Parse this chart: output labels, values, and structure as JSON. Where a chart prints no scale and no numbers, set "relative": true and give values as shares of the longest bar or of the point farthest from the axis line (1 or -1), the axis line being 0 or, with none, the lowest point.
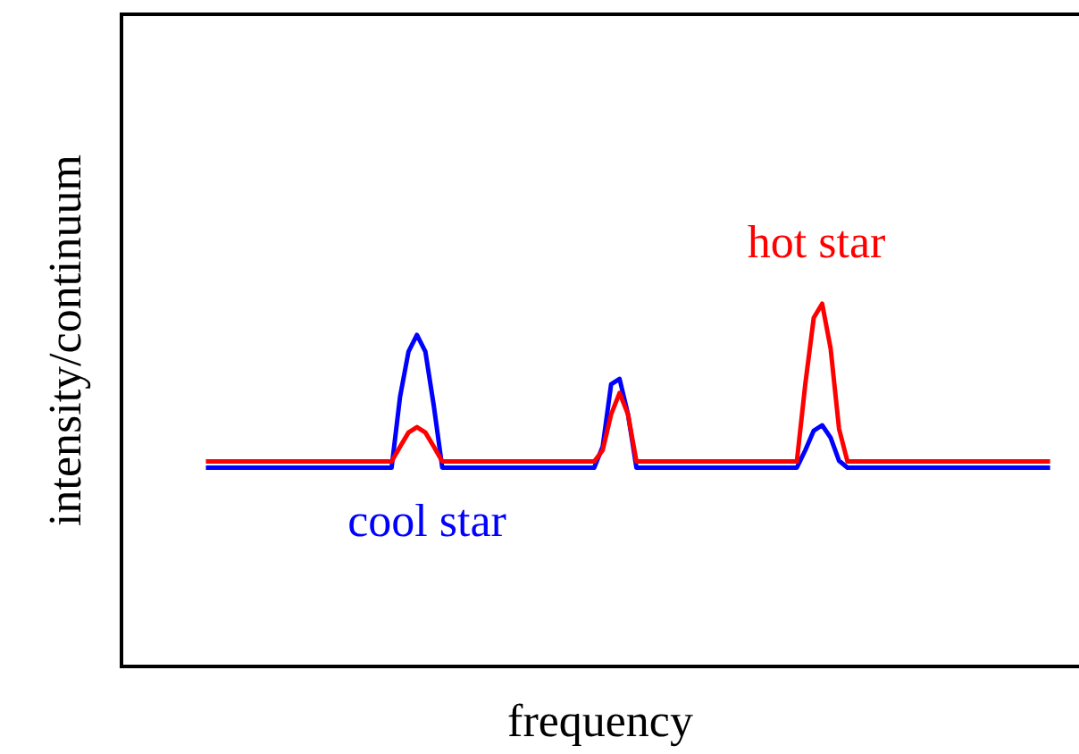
{
  "chart_data": {
    "type": "line",
    "xlabel": "frequency",
    "ylabel": "intensity/continuum",
    "relative": true,
    "legend": false,
    "marker": "none",
    "line_style": "solid",
    "categories": [
      null,
      null,
      null,
      null,
      null,
      null,
      null,
      null,
      null,
      null,
      null,
      null,
      null,
      null,
      null,
      null,
      null,
      null,
      null,
      null,
      null,
      null,
      null,
      null,
      null,
      null,
      null,
      null,
      null,
      null,
      null,
      null,
      null,
      null,
      null,
      null,
      null,
      null,
      null,
      null,
      null,
      null,
      null,
      null,
      null,
      null,
      null,
      null,
      null,
      null,
      null,
      null,
      null,
      null,
      null,
      null,
      null,
      null,
      null,
      null,
      null,
      null,
      null,
      null,
      null,
      null,
      null,
      null,
      null,
      null,
      null,
      null,
      null,
      null,
      null,
      null,
      null,
      null,
      null,
      null,
      null,
      null,
      null,
      null,
      null,
      null,
      null,
      null,
      null,
      null,
      null,
      null,
      null,
      null,
      null,
      null,
      null,
      null,
      null,
      null,
      null,
      null,
      null,
      null,
      null,
      null,
      null,
      null,
      null,
      null,
      null,
      null,
      null,
      null
    ],
    "series": [
      {
        "name": "hot star",
        "color": "#ff0000",
        "values": [
          null,
          null,
          null,
          null,
          null,
          null,
          null,
          null,
          null,
          null,
          0.565,
          0.565,
          0.565,
          0.565,
          0.565,
          0.565,
          0.565,
          0.565,
          0.565,
          0.565,
          0.565,
          0.565,
          0.565,
          0.565,
          0.565,
          0.565,
          0.565,
          0.565,
          0.565,
          0.565,
          0.565,
          0.565,
          0.565,
          0.606,
          0.645,
          0.66,
          0.645,
          0.606,
          0.565,
          0.565,
          0.565,
          0.565,
          0.565,
          0.565,
          0.565,
          0.565,
          0.565,
          0.565,
          0.565,
          0.565,
          0.565,
          0.565,
          0.565,
          0.565,
          0.565,
          0.565,
          0.565,
          0.596,
          0.695,
          0.754,
          0.695,
          0.565,
          0.565,
          0.565,
          0.565,
          0.565,
          0.565,
          0.565,
          0.565,
          0.565,
          0.565,
          0.565,
          0.565,
          0.565,
          0.565,
          0.565,
          0.565,
          0.565,
          0.565,
          0.565,
          0.565,
          0.778,
          0.961,
          1,
          0.877,
          0.655,
          0.565,
          0.565,
          0.565,
          0.565,
          0.565,
          0.565,
          0.565,
          0.565,
          0.565,
          0.565,
          0.565,
          0.565,
          0.565,
          0.565,
          0.565,
          0.565,
          0.565,
          0.565,
          0.565,
          0.565,
          0.565,
          0.565,
          0.565,
          0.565,
          0.565,
          null,
          null,
          null
        ]
      },
      {
        "name": "cool star",
        "color": "#0000ff",
        "values": [
          null,
          null,
          null,
          null,
          null,
          null,
          null,
          null,
          null,
          null,
          0.548,
          0.548,
          0.548,
          0.548,
          0.548,
          0.548,
          0.548,
          0.548,
          0.548,
          0.548,
          0.548,
          0.548,
          0.548,
          0.548,
          0.548,
          0.548,
          0.548,
          0.548,
          0.548,
          0.548,
          0.548,
          0.548,
          0.548,
          0.744,
          0.868,
          0.914,
          0.868,
          0.718,
          0.548,
          0.548,
          0.548,
          0.548,
          0.548,
          0.548,
          0.548,
          0.548,
          0.548,
          0.548,
          0.548,
          0.548,
          0.548,
          0.548,
          0.548,
          0.548,
          0.548,
          0.548,
          0.548,
          0.606,
          0.778,
          0.793,
          0.695,
          0.548,
          0.548,
          0.548,
          0.548,
          0.548,
          0.548,
          0.548,
          0.548,
          0.548,
          0.548,
          0.548,
          0.548,
          0.548,
          0.548,
          0.548,
          0.548,
          0.548,
          0.548,
          0.548,
          0.548,
          0.596,
          0.65,
          0.665,
          0.631,
          0.567,
          0.548,
          0.548,
          0.548,
          0.548,
          0.548,
          0.548,
          0.548,
          0.548,
          0.548,
          0.548,
          0.548,
          0.548,
          0.548,
          0.548,
          0.548,
          0.548,
          0.548,
          0.548,
          0.548,
          0.548,
          0.548,
          0.548,
          0.548,
          0.548,
          0.548,
          null,
          null,
          null
        ]
      }
    ]
  }
}
